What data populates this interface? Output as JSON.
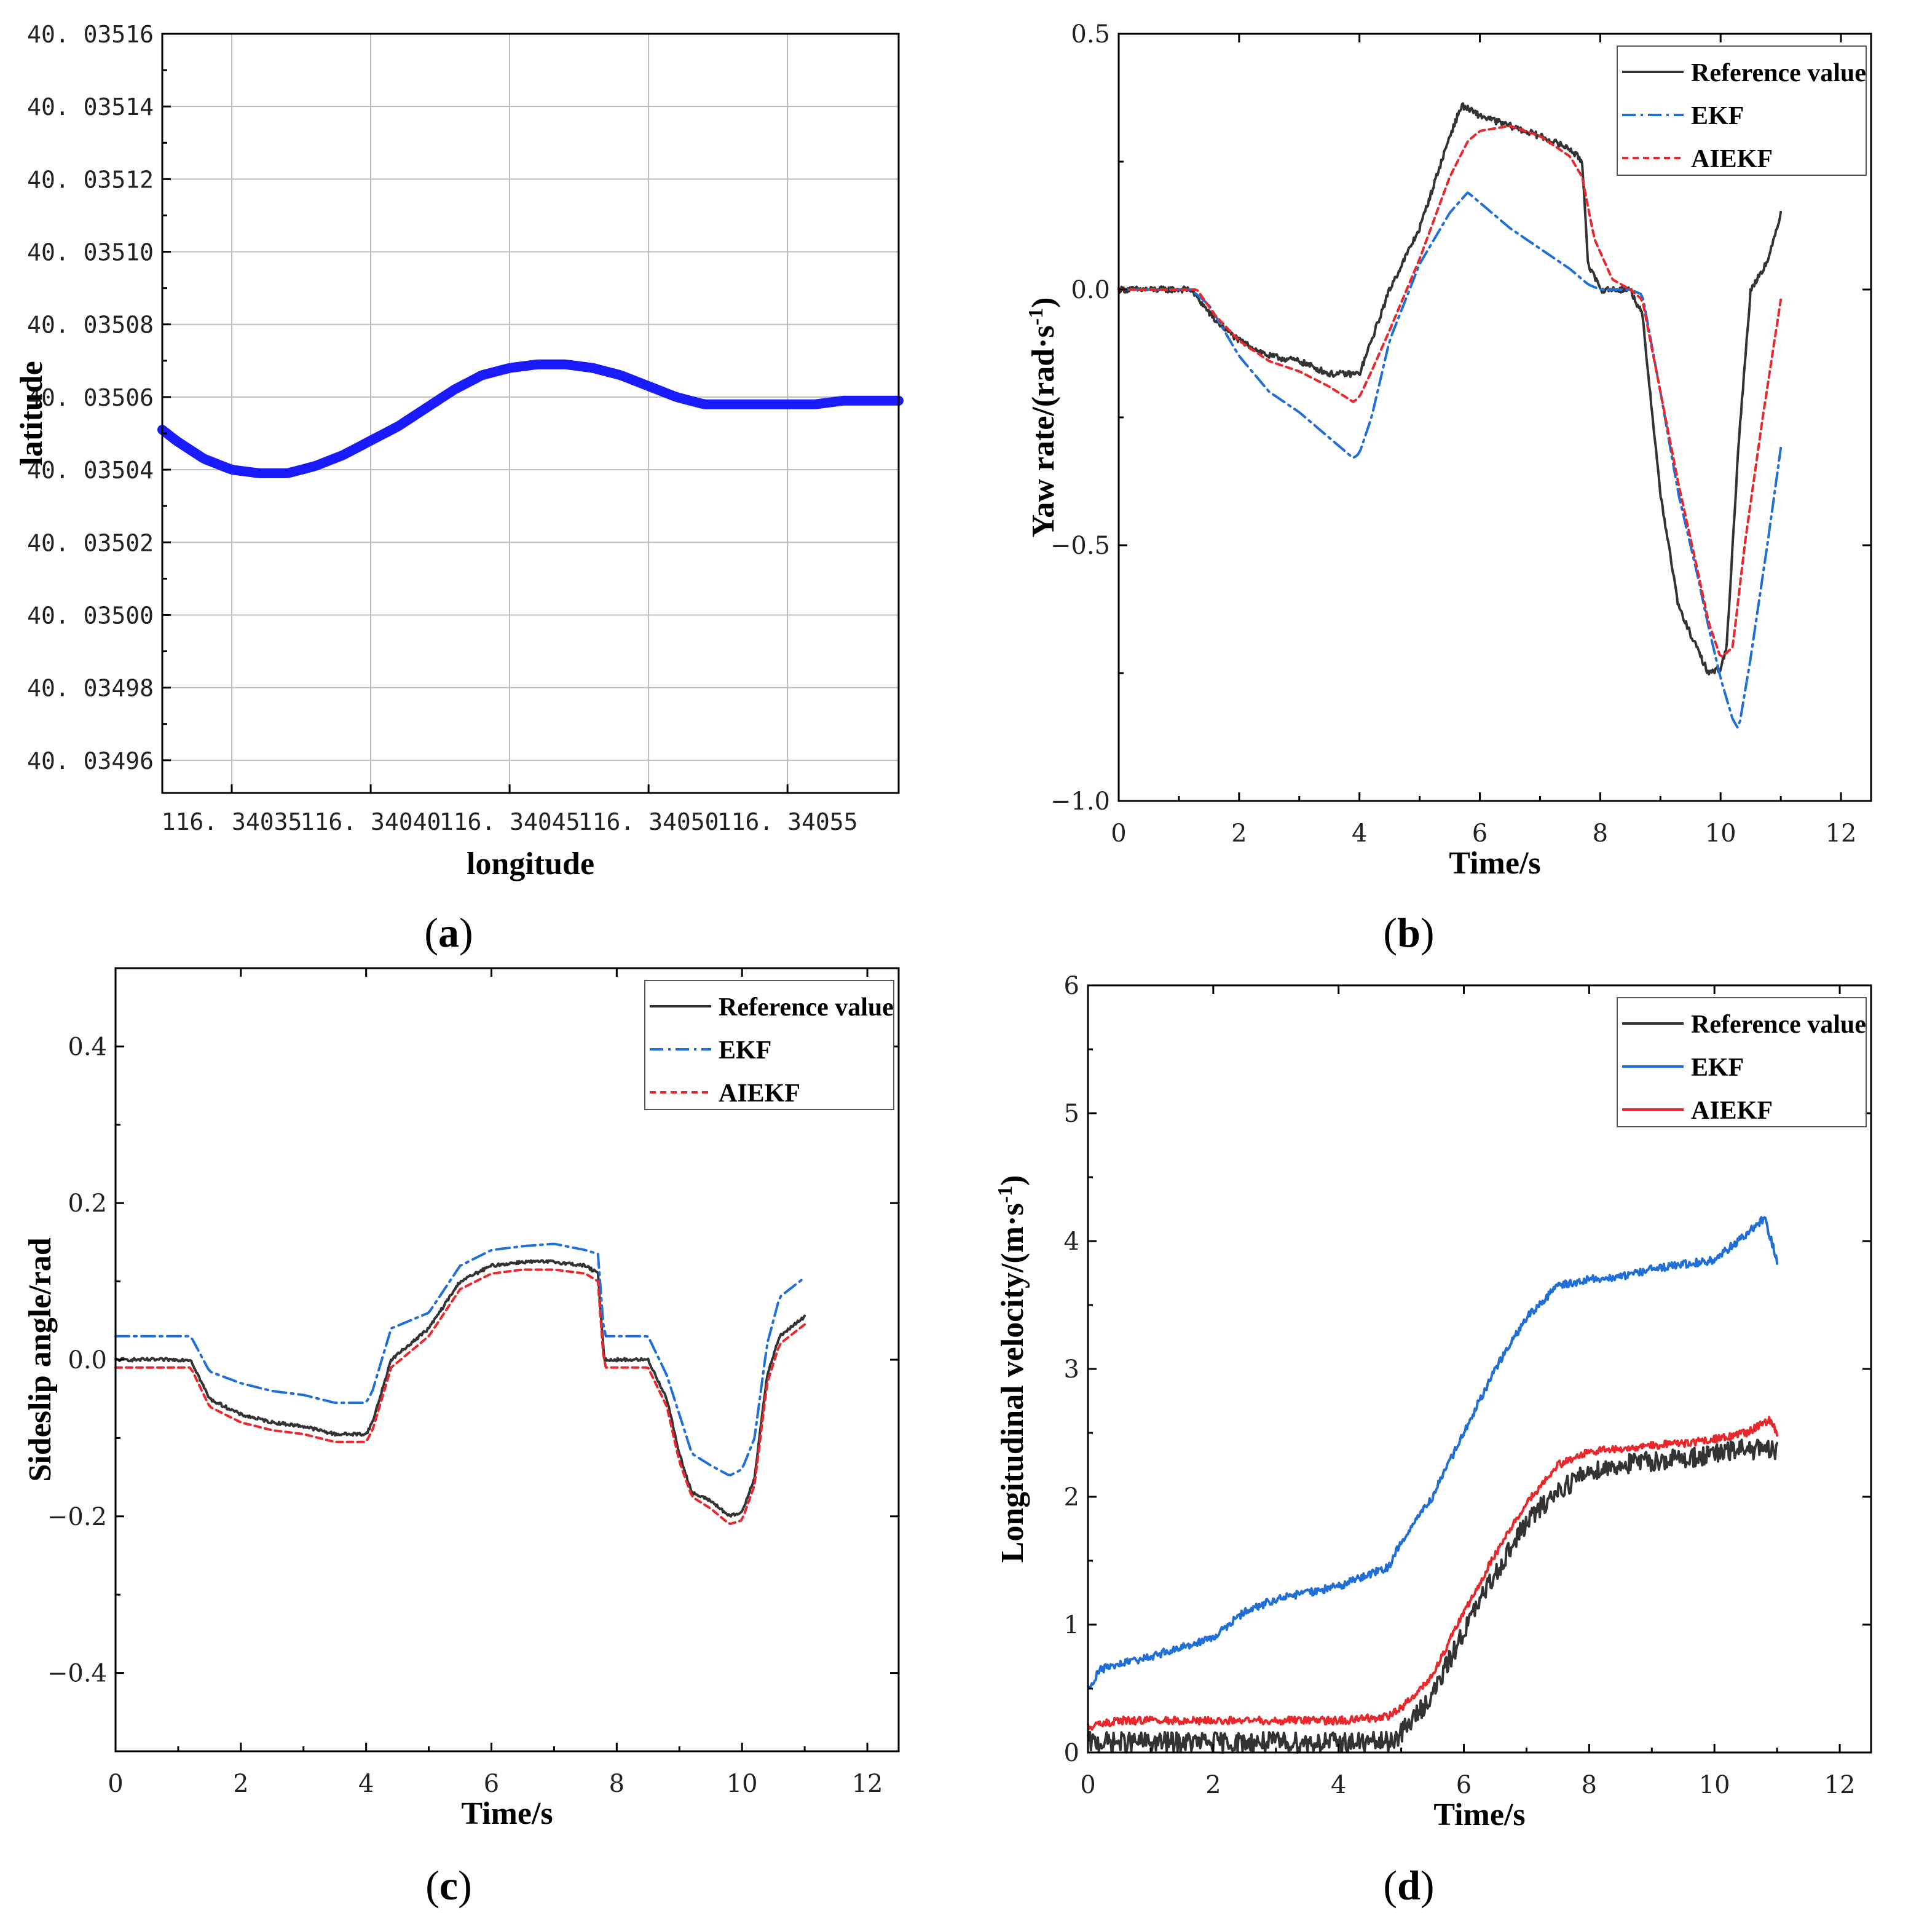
{
  "colors": {
    "reference": "#333333",
    "ekf": "#1f6fd6",
    "aiekf": "#e8282b",
    "trajectory": "#1a1aff",
    "grid": "#bdbdbd",
    "axis": "#000000"
  },
  "chart_data": [
    {
      "id": "a",
      "type": "line",
      "panel_label": "a",
      "xlabel": "longitude",
      "ylabel": "latitude",
      "xlim": [
        116.340325,
        116.34059
      ],
      "ylim": [
        40.034951,
        40.03516
      ],
      "xticks": [
        116.34035,
        116.3404,
        116.34045,
        116.3405,
        116.34055
      ],
      "xtick_labels": [
        "116. 34035",
        "116. 34040",
        "116. 34045",
        "116. 34050",
        "116. 34055"
      ],
      "yticks": [
        40.03496,
        40.03498,
        40.035,
        40.03502,
        40.03504,
        40.03506,
        40.03508,
        40.0351,
        40.03512,
        40.03514,
        40.03516
      ],
      "ytick_labels": [
        "40. 03496",
        "40. 03498",
        "40. 03500",
        "40. 03502",
        "40. 03504",
        "40. 03506",
        "40. 03508",
        "40. 03510",
        "40. 03512",
        "40. 03514",
        "40. 03516"
      ],
      "grid": true,
      "series": [
        {
          "name": "trajectory",
          "x": [
            116.340325,
            116.34033,
            116.34034,
            116.34035,
            116.34036,
            116.34037,
            116.34038,
            116.34039,
            116.3404,
            116.34041,
            116.34042,
            116.34043,
            116.34044,
            116.34045,
            116.34046,
            116.34047,
            116.34048,
            116.34049,
            116.3405,
            116.34051,
            116.34052,
            116.34053,
            116.34054,
            116.34055,
            116.34056,
            116.34057,
            116.34058,
            116.34059
          ],
          "y": [
            40.035051,
            40.035048,
            40.035043,
            40.03504,
            40.035039,
            40.035039,
            40.035041,
            40.035044,
            40.035048,
            40.035052,
            40.035057,
            40.035062,
            40.035066,
            40.035068,
            40.035069,
            40.035069,
            40.035068,
            40.035066,
            40.035063,
            40.03506,
            40.035058,
            40.035058,
            40.035058,
            40.035058,
            40.035058,
            40.035059,
            40.035059,
            40.035059
          ]
        }
      ]
    },
    {
      "id": "b",
      "type": "line",
      "panel_label": "b",
      "xlabel": "Time/s",
      "ylabel": "Yaw rate/(rad·s",
      "ylabel_sup": "-1",
      "ylabel_close": ")",
      "xlim": [
        0,
        12.5
      ],
      "ylim": [
        -1.0,
        0.5
      ],
      "xticks": [
        0,
        2,
        4,
        6,
        8,
        10,
        12
      ],
      "xtick_labels": [
        "0",
        "2",
        "4",
        "6",
        "8",
        "10",
        "12"
      ],
      "yticks": [
        -1.0,
        -0.5,
        0.0,
        0.5
      ],
      "ytick_labels": [
        "−1.0",
        "−0.5",
        "0.0",
        "0.5"
      ],
      "grid": false,
      "legend": {
        "position": "top-right",
        "entries": [
          "Reference value",
          "EKF",
          "AIEKF"
        ]
      },
      "series": [
        {
          "name": "Reference value",
          "style": "solid",
          "noise": 0.006,
          "x": [
            0,
            1.2,
            1.6,
            2.0,
            2.5,
            3.0,
            3.5,
            4.0,
            4.2,
            4.5,
            5.0,
            5.5,
            5.7,
            6.0,
            6.5,
            7.0,
            7.5,
            7.7,
            7.8,
            8.0,
            8.5,
            8.7,
            9.0,
            9.3,
            9.6,
            9.8,
            10.0,
            10.1,
            10.3,
            10.5,
            10.8,
            11.0
          ],
          "y": [
            0,
            0,
            -0.06,
            -0.1,
            -0.13,
            -0.14,
            -0.165,
            -0.165,
            -0.1,
            0.0,
            0.12,
            0.3,
            0.36,
            0.34,
            0.32,
            0.3,
            0.275,
            0.25,
            0.05,
            0.0,
            0.0,
            -0.05,
            -0.4,
            -0.62,
            -0.7,
            -0.75,
            -0.74,
            -0.7,
            -0.3,
            0.0,
            0.06,
            0.15
          ]
        },
        {
          "name": "EKF",
          "style": "dashdot",
          "x": [
            0,
            1.2,
            1.5,
            2.0,
            2.5,
            3.0,
            3.5,
            3.9,
            4.0,
            4.2,
            4.5,
            5.0,
            5.5,
            5.8,
            6.0,
            6.5,
            7.0,
            7.5,
            7.8,
            8.0,
            8.5,
            8.7,
            9.0,
            9.3,
            9.6,
            9.8,
            10.0,
            10.2,
            10.3,
            10.5,
            10.8,
            11.0
          ],
          "y": [
            0,
            0,
            -0.03,
            -0.13,
            -0.2,
            -0.24,
            -0.29,
            -0.33,
            -0.32,
            -0.25,
            -0.1,
            0.05,
            0.15,
            0.19,
            0.17,
            0.12,
            0.08,
            0.04,
            0.01,
            0.0,
            0.0,
            -0.01,
            -0.2,
            -0.4,
            -0.55,
            -0.66,
            -0.76,
            -0.84,
            -0.86,
            -0.72,
            -0.48,
            -0.31
          ]
        },
        {
          "name": "AIEKF",
          "style": "dotted",
          "x": [
            0,
            1.3,
            1.6,
            2.0,
            2.5,
            3.0,
            3.5,
            3.9,
            4.0,
            4.2,
            4.5,
            5.0,
            5.5,
            5.8,
            6.0,
            6.5,
            7.0,
            7.5,
            7.7,
            7.9,
            8.2,
            8.5,
            8.7,
            9.0,
            9.3,
            9.6,
            9.8,
            10.0,
            10.2,
            10.4,
            10.7,
            11.0
          ],
          "y": [
            0,
            0,
            -0.05,
            -0.1,
            -0.14,
            -0.16,
            -0.19,
            -0.22,
            -0.21,
            -0.16,
            -0.08,
            0.06,
            0.22,
            0.29,
            0.31,
            0.32,
            0.3,
            0.26,
            0.22,
            0.1,
            0.02,
            0.0,
            -0.02,
            -0.2,
            -0.38,
            -0.54,
            -0.65,
            -0.72,
            -0.7,
            -0.5,
            -0.25,
            -0.02
          ]
        }
      ]
    },
    {
      "id": "c",
      "type": "line",
      "panel_label": "c",
      "xlabel": "Time/s",
      "ylabel": "Sideslip angle/rad",
      "xlim": [
        0,
        12.5
      ],
      "ylim": [
        -0.5,
        0.5
      ],
      "xticks": [
        0,
        2,
        4,
        6,
        8,
        10,
        12
      ],
      "xtick_labels": [
        "0",
        "2",
        "4",
        "6",
        "8",
        "10",
        "12"
      ],
      "yticks": [
        -0.4,
        -0.2,
        0.0,
        0.2,
        0.4
      ],
      "ytick_labels": [
        "−0.4",
        "−0.2",
        "0.0",
        "0.2",
        "0.4"
      ],
      "grid": false,
      "legend": {
        "position": "top-right",
        "entries": [
          "Reference value",
          "EKF",
          "AIEKF"
        ]
      },
      "series": [
        {
          "name": "Reference value",
          "style": "solid",
          "noise": 0.002,
          "x": [
            0,
            1.2,
            1.5,
            2.0,
            2.5,
            3.0,
            3.5,
            4.0,
            4.1,
            4.4,
            5.0,
            5.5,
            6.0,
            6.5,
            7.0,
            7.5,
            7.7,
            7.8,
            8.0,
            8.5,
            8.8,
            9.0,
            9.2,
            9.5,
            9.8,
            10.0,
            10.2,
            10.4,
            10.6,
            11.0
          ],
          "y": [
            0.0,
            0.0,
            -0.05,
            -0.07,
            -0.08,
            -0.085,
            -0.095,
            -0.095,
            -0.08,
            0.0,
            0.04,
            0.1,
            0.12,
            0.125,
            0.125,
            0.12,
            0.11,
            0.0,
            0.0,
            0.0,
            -0.05,
            -0.12,
            -0.17,
            -0.18,
            -0.2,
            -0.195,
            -0.15,
            -0.02,
            0.03,
            0.055
          ]
        },
        {
          "name": "EKF",
          "style": "dashdot",
          "x": [
            0,
            1.2,
            1.5,
            2.0,
            2.5,
            3.0,
            3.5,
            4.0,
            4.1,
            4.4,
            5.0,
            5.5,
            6.0,
            6.5,
            7.0,
            7.5,
            7.7,
            7.8,
            8.0,
            8.5,
            8.8,
            9.0,
            9.2,
            9.5,
            9.8,
            10.0,
            10.2,
            10.4,
            10.6,
            11.0
          ],
          "y": [
            0.03,
            0.03,
            -0.015,
            -0.03,
            -0.04,
            -0.045,
            -0.055,
            -0.055,
            -0.04,
            0.04,
            0.06,
            0.12,
            0.14,
            0.145,
            0.148,
            0.14,
            0.135,
            0.03,
            0.03,
            0.03,
            -0.02,
            -0.07,
            -0.12,
            -0.135,
            -0.148,
            -0.14,
            -0.1,
            0.02,
            0.08,
            0.105
          ]
        },
        {
          "name": "AIEKF",
          "style": "dotted",
          "x": [
            0,
            1.2,
            1.5,
            2.0,
            2.5,
            3.0,
            3.5,
            4.0,
            4.1,
            4.4,
            5.0,
            5.5,
            6.0,
            6.5,
            7.0,
            7.5,
            7.7,
            7.8,
            8.0,
            8.5,
            8.8,
            9.0,
            9.2,
            9.5,
            9.8,
            10.0,
            10.2,
            10.4,
            10.6,
            11.0
          ],
          "y": [
            -0.01,
            -0.01,
            -0.06,
            -0.08,
            -0.09,
            -0.095,
            -0.105,
            -0.105,
            -0.09,
            -0.01,
            0.03,
            0.09,
            0.11,
            0.115,
            0.115,
            0.11,
            0.1,
            -0.01,
            -0.01,
            -0.01,
            -0.06,
            -0.13,
            -0.175,
            -0.19,
            -0.21,
            -0.205,
            -0.16,
            -0.03,
            0.02,
            0.045
          ]
        }
      ]
    },
    {
      "id": "d",
      "type": "line",
      "panel_label": "d",
      "xlabel": "Time/s",
      "ylabel": "Longitudinal velocity/(m·s",
      "ylabel_sup": "-1",
      "ylabel_close": ")",
      "xlim": [
        0,
        12.5
      ],
      "ylim": [
        0,
        6
      ],
      "xticks": [
        0,
        2,
        4,
        6,
        8,
        10,
        12
      ],
      "xtick_labels": [
        "0",
        "2",
        "4",
        "6",
        "8",
        "10",
        "12"
      ],
      "yticks": [
        0,
        1,
        2,
        3,
        4,
        5,
        6
      ],
      "ytick_labels": [
        "0",
        "1",
        "2",
        "3",
        "4",
        "5",
        "6"
      ],
      "grid": false,
      "legend": {
        "position": "top-right",
        "entries": [
          "Reference value",
          "EKF",
          "AIEKF"
        ]
      },
      "series": [
        {
          "name": "Reference value",
          "style": "solid",
          "noise": 0.08,
          "x": [
            0,
            1.0,
            2.0,
            3.0,
            4.0,
            4.8,
            5.0,
            5.5,
            6.0,
            6.5,
            7.0,
            7.5,
            8.0,
            8.5,
            9.0,
            9.5,
            10.0,
            10.5,
            11.0
          ],
          "y": [
            0.08,
            0.08,
            0.08,
            0.08,
            0.08,
            0.08,
            0.15,
            0.45,
            0.95,
            1.4,
            1.8,
            2.05,
            2.2,
            2.25,
            2.28,
            2.3,
            2.33,
            2.38,
            2.35
          ]
        },
        {
          "name": "EKF",
          "style": "solid",
          "noise": 0.03,
          "x": [
            0,
            0.2,
            1.0,
            2.0,
            2.5,
            3.0,
            4.0,
            4.8,
            5.0,
            5.5,
            6.0,
            6.5,
            7.0,
            7.5,
            8.0,
            8.5,
            9.0,
            9.5,
            10.0,
            10.5,
            10.8,
            11.0
          ],
          "y": [
            0.5,
            0.65,
            0.75,
            0.9,
            1.1,
            1.2,
            1.3,
            1.45,
            1.65,
            2.0,
            2.5,
            3.0,
            3.4,
            3.65,
            3.7,
            3.72,
            3.78,
            3.82,
            3.85,
            4.05,
            4.18,
            3.85
          ]
        },
        {
          "name": "AIEKF",
          "style": "solid",
          "noise": 0.03,
          "x": [
            0,
            0.5,
            1.0,
            2.0,
            3.0,
            4.0,
            4.8,
            5.0,
            5.5,
            6.0,
            6.5,
            7.0,
            7.5,
            8.0,
            8.5,
            9.0,
            9.5,
            10.0,
            10.5,
            10.9,
            11.0
          ],
          "y": [
            0.2,
            0.25,
            0.25,
            0.25,
            0.25,
            0.25,
            0.28,
            0.35,
            0.6,
            1.1,
            1.55,
            1.95,
            2.25,
            2.35,
            2.38,
            2.4,
            2.42,
            2.45,
            2.5,
            2.6,
            2.5
          ]
        }
      ]
    }
  ]
}
